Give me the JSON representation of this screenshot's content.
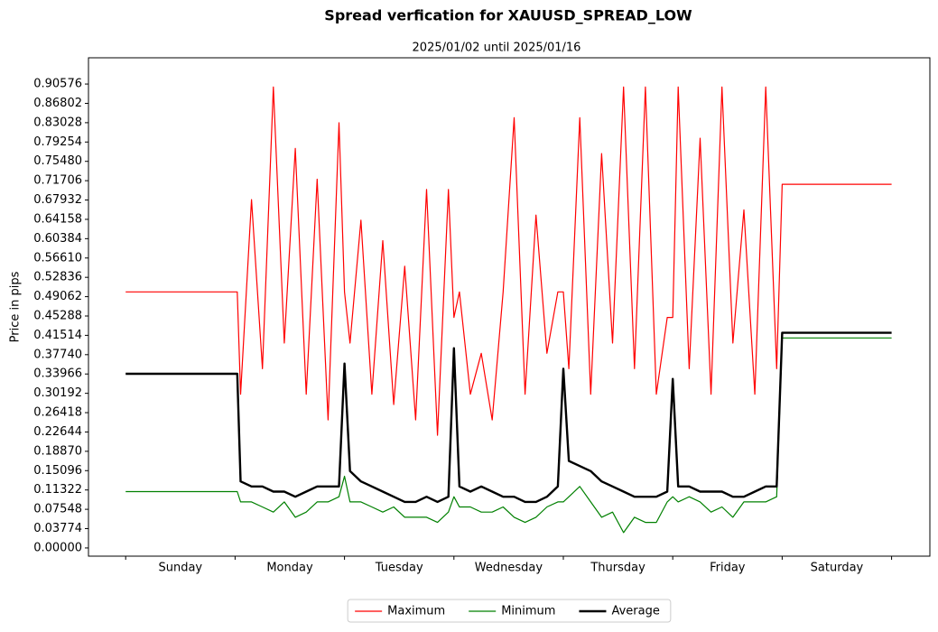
{
  "chart_data": {
    "type": "line",
    "title": "Spread verfication for XAUUSD_SPREAD_LOW",
    "subtitle": "2025/01/02 until 2025/01/16",
    "y_label": "Price in pips",
    "categories": [
      "Sunday",
      "Monday",
      "Tuesday",
      "Wednesday",
      "Thursday",
      "Friday",
      "Saturday"
    ],
    "xlim": [
      -0.34,
      7.35
    ],
    "ylim": [
      -0.016,
      0.957
    ],
    "yticks": [
      {
        "value": 0,
        "label": "0.00000"
      },
      0.03774,
      0.07548,
      0.11322,
      0.15096,
      {
        "value": 0.1887,
        "label": "0.18870"
      },
      0.22644,
      0.26418,
      0.30192,
      0.33966,
      {
        "value": 0.3774,
        "label": "0.37740"
      },
      0.41514,
      0.45288,
      0.49062,
      0.52836,
      {
        "value": 0.5661,
        "label": "0.56610"
      },
      0.60384,
      0.64158,
      0.67932,
      0.71706,
      {
        "value": 0.7548,
        "label": "0.75480"
      },
      0.79254,
      0.83028,
      0.86802,
      0.90576
    ],
    "x": [
      0,
      1.02,
      1.05,
      1.15,
      1.25,
      1.35,
      1.45,
      1.55,
      1.65,
      1.75,
      1.85,
      1.95,
      2.0,
      2.05,
      2.15,
      2.25,
      2.35,
      2.45,
      2.55,
      2.65,
      2.75,
      2.85,
      2.95,
      3.0,
      3.05,
      3.15,
      3.25,
      3.35,
      3.45,
      3.55,
      3.65,
      3.75,
      3.85,
      3.95,
      4.0,
      4.05,
      4.15,
      4.25,
      4.35,
      4.45,
      4.55,
      4.65,
      4.75,
      4.85,
      4.95,
      5.0,
      5.05,
      5.15,
      5.25,
      5.35,
      5.45,
      5.55,
      5.65,
      5.75,
      5.85,
      5.95,
      6.0,
      7.0
    ],
    "series": [
      {
        "name": "Maximum",
        "color": "#ff0000",
        "linewidth": 1.2,
        "values": [
          0.5,
          0.5,
          0.3,
          0.68,
          0.35,
          0.9,
          0.4,
          0.78,
          0.3,
          0.72,
          0.25,
          0.83,
          0.5,
          0.4,
          0.64,
          0.3,
          0.6,
          0.28,
          0.55,
          0.25,
          0.7,
          0.22,
          0.7,
          0.45,
          0.5,
          0.3,
          0.38,
          0.25,
          0.5,
          0.84,
          0.3,
          0.65,
          0.38,
          0.5,
          0.5,
          0.35,
          0.84,
          0.3,
          0.77,
          0.4,
          0.9,
          0.35,
          0.9,
          0.3,
          0.45,
          0.45,
          0.9,
          0.35,
          0.8,
          0.3,
          0.9,
          0.4,
          0.66,
          0.3,
          0.9,
          0.35,
          0.71,
          0.71
        ]
      },
      {
        "name": "Minimum",
        "color": "#008000",
        "linewidth": 1.2,
        "values": [
          0.11,
          0.11,
          0.09,
          0.09,
          0.08,
          0.07,
          0.09,
          0.06,
          0.07,
          0.09,
          0.09,
          0.1,
          0.14,
          0.09,
          0.09,
          0.08,
          0.07,
          0.08,
          0.06,
          0.06,
          0.06,
          0.05,
          0.07,
          0.1,
          0.08,
          0.08,
          0.07,
          0.07,
          0.08,
          0.06,
          0.05,
          0.06,
          0.08,
          0.09,
          0.09,
          0.1,
          0.12,
          0.09,
          0.06,
          0.07,
          0.03,
          0.06,
          0.05,
          0.05,
          0.09,
          0.1,
          0.09,
          0.1,
          0.09,
          0.07,
          0.08,
          0.06,
          0.09,
          0.09,
          0.09,
          0.1,
          0.41,
          0.41
        ]
      },
      {
        "name": "Average",
        "color": "#000000",
        "linewidth": 2.4,
        "values": [
          0.34,
          0.34,
          0.13,
          0.12,
          0.12,
          0.11,
          0.11,
          0.1,
          0.11,
          0.12,
          0.12,
          0.12,
          0.36,
          0.15,
          0.13,
          0.12,
          0.11,
          0.1,
          0.09,
          0.09,
          0.1,
          0.09,
          0.1,
          0.39,
          0.12,
          0.11,
          0.12,
          0.11,
          0.1,
          0.1,
          0.09,
          0.09,
          0.1,
          0.12,
          0.35,
          0.17,
          0.16,
          0.15,
          0.13,
          0.12,
          0.11,
          0.1,
          0.1,
          0.1,
          0.11,
          0.33,
          0.12,
          0.12,
          0.11,
          0.11,
          0.11,
          0.1,
          0.1,
          0.11,
          0.12,
          0.12,
          0.42,
          0.42
        ]
      }
    ],
    "legend": "lower center"
  }
}
